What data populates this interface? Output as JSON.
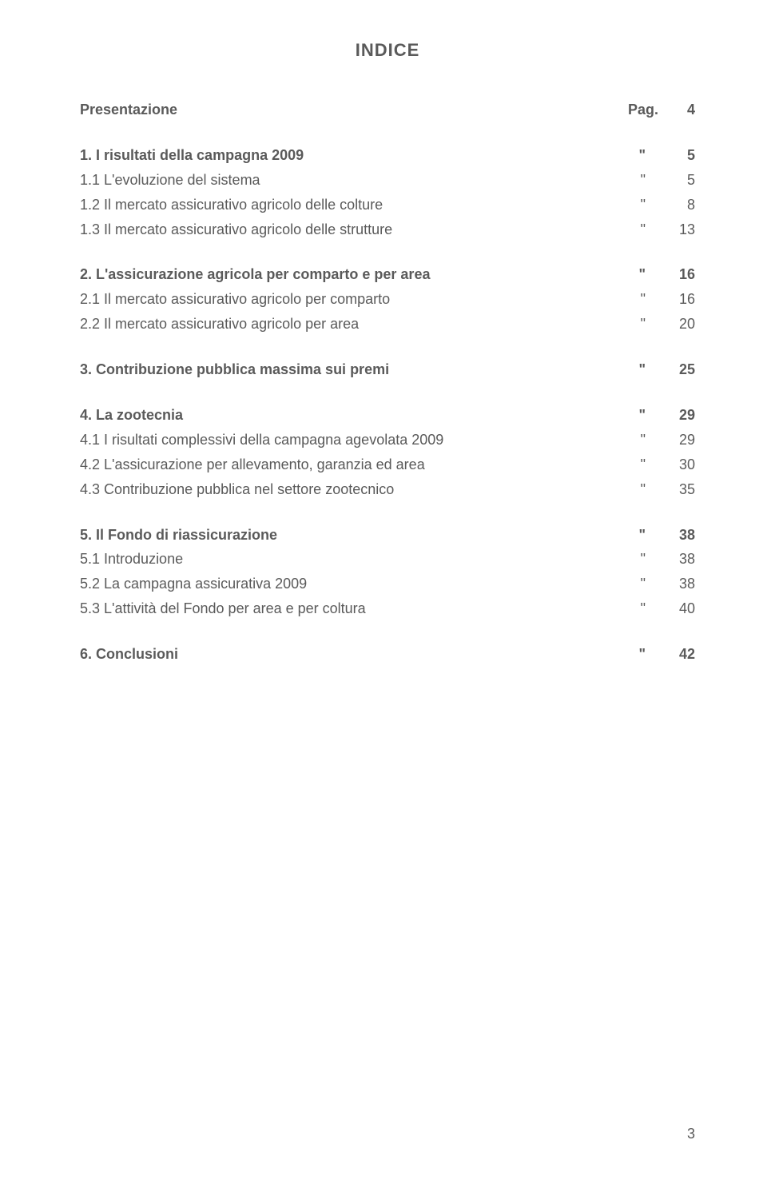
{
  "title": "INDICE",
  "page_number": "3",
  "colors": {
    "text": "#5a5a5a",
    "background": "#ffffff"
  },
  "typography": {
    "font_family": "Verdana, Geneva, sans-serif",
    "title_fontsize": 22,
    "body_fontsize": 18,
    "line_height": 1.55
  },
  "entries": [
    {
      "label": "Presentazione",
      "prefix": "Pag.",
      "page": "4",
      "bold": true,
      "gap_after": true
    },
    {
      "label": "1. I risultati della campagna 2009",
      "prefix": "\"",
      "page": "5",
      "bold": true
    },
    {
      "label": "1.1 L'evoluzione del sistema",
      "prefix": "\"",
      "page": "5",
      "bold": false
    },
    {
      "label": "1.2 Il mercato assicurativo agricolo delle colture",
      "prefix": "\"",
      "page": "8",
      "bold": false
    },
    {
      "label": "1.3 Il mercato assicurativo agricolo delle strutture",
      "prefix": "\"",
      "page": "13",
      "bold": false,
      "gap_after": true
    },
    {
      "label": "2. L'assicurazione agricola per comparto e per area",
      "prefix": "\"",
      "page": "16",
      "bold": true
    },
    {
      "label": "2.1 Il mercato assicurativo agricolo per comparto",
      "prefix": "\"",
      "page": "16",
      "bold": false
    },
    {
      "label": "2.2 Il mercato assicurativo agricolo per area",
      "prefix": "\"",
      "page": "20",
      "bold": false,
      "gap_after": true
    },
    {
      "label": "3. Contribuzione pubblica massima sui premi",
      "prefix": "\"",
      "page": "25",
      "bold": true,
      "gap_after": true
    },
    {
      "label": "4. La zootecnia",
      "prefix": "\"",
      "page": "29",
      "bold": true
    },
    {
      "label": "4.1 I risultati complessivi della campagna agevolata 2009",
      "prefix": "\"",
      "page": "29",
      "bold": false
    },
    {
      "label": "4.2 L'assicurazione per allevamento, garanzia ed area",
      "prefix": "\"",
      "page": "30",
      "bold": false
    },
    {
      "label": "4.3 Contribuzione pubblica nel settore zootecnico",
      "prefix": "\"",
      "page": "35",
      "bold": false,
      "gap_after": true
    },
    {
      "label": "5. Il Fondo di riassicurazione",
      "prefix": "\"",
      "page": "38",
      "bold": true
    },
    {
      "label": "5.1 Introduzione",
      "prefix": "\"",
      "page": "38",
      "bold": false
    },
    {
      "label": "5.2 La campagna assicurativa 2009",
      "prefix": "\"",
      "page": "38",
      "bold": false
    },
    {
      "label": "5.3 L'attività del Fondo per area e per coltura",
      "prefix": "\"",
      "page": "40",
      "bold": false,
      "gap_after": true
    },
    {
      "label": "6. Conclusioni",
      "prefix": "\"",
      "page": "42",
      "bold": true
    }
  ]
}
